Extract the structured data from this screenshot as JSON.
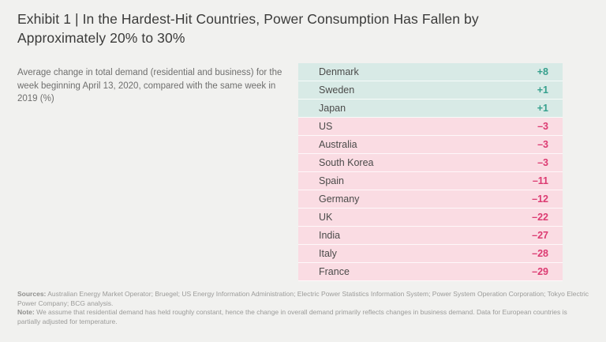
{
  "colors": {
    "background": "#f1f1ef",
    "title_text": "#3b3b3a",
    "pos_bg": "#d8eae6",
    "neg_bg": "#fadce3",
    "pos_text": "#35a08d",
    "neg_text": "#dc3b72"
  },
  "header": {
    "title": "Exhibit 1 | In the Hardest-Hit Countries, Power Consumption Has Fallen by Approximately 20% to 30%"
  },
  "description": "Average change in total demand (residential and business) for the week beginning April 13, 2020, compared with the same week in 2019 (%)",
  "table": {
    "rows": [
      {
        "country": "Denmark",
        "value": "+8",
        "sentiment": "positive"
      },
      {
        "country": "Sweden",
        "value": "+1",
        "sentiment": "positive"
      },
      {
        "country": "Japan",
        "value": "+1",
        "sentiment": "positive"
      },
      {
        "country": "US",
        "value": "–3",
        "sentiment": "negative"
      },
      {
        "country": "Australia",
        "value": "–3",
        "sentiment": "negative"
      },
      {
        "country": "South Korea",
        "value": "–3",
        "sentiment": "negative"
      },
      {
        "country": "Spain",
        "value": "–11",
        "sentiment": "negative"
      },
      {
        "country": "Germany",
        "value": "–12",
        "sentiment": "negative"
      },
      {
        "country": "UK",
        "value": "–22",
        "sentiment": "negative"
      },
      {
        "country": "India",
        "value": "–27",
        "sentiment": "negative"
      },
      {
        "country": "Italy",
        "value": "–28",
        "sentiment": "negative"
      },
      {
        "country": "France",
        "value": "–29",
        "sentiment": "negative"
      }
    ]
  },
  "footer": {
    "sources_label": "Sources:",
    "sources_text": " Australian Energy Market Operator; Bruegel; US Energy Information Administration; Electric Power Statistics Information System; Power System Operation Corporation; Tokyo Electric Power Company; BCG analysis.",
    "note_label": "Note:",
    "note_text": " We assume that residential demand has held roughly constant, hence the change in overall demand primarily reflects changes in business demand. Data for European countries is partially adjusted for temperature."
  },
  "chart_data": {
    "type": "table",
    "title": "Exhibit 1 | In the Hardest-Hit Countries, Power Consumption Has Fallen by Approximately 20% to 30%",
    "subtitle": "Average change in total demand (residential and business) for the week beginning April 13, 2020, compared with the same week in 2019 (%)",
    "categories": [
      "Denmark",
      "Sweden",
      "Japan",
      "US",
      "Australia",
      "South Korea",
      "Spain",
      "Germany",
      "UK",
      "India",
      "Italy",
      "France"
    ],
    "values": [
      8,
      1,
      1,
      -3,
      -3,
      -3,
      -11,
      -12,
      -22,
      -27,
      -28,
      -29
    ],
    "unit": "% change vs same week in 2019",
    "positive_color": "#35a08d",
    "negative_color": "#dc3b72"
  }
}
